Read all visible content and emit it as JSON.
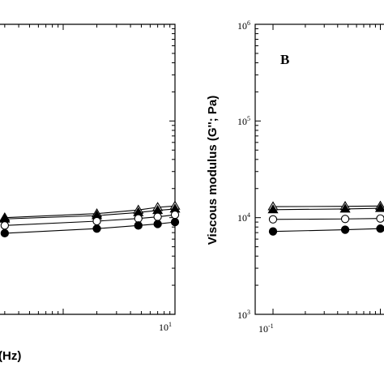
{
  "chart_data": [
    {
      "type": "line",
      "panel": "A",
      "xlabel_fragment": "(Hz)",
      "xscale": "log",
      "yscale": "log",
      "xlim": [
        0.1,
        10
      ],
      "ylim": [
        1000,
        1000000
      ],
      "x_tick_labels": [
        {
          "base": "10",
          "exp": "1",
          "value": 10
        }
      ],
      "series": [
        {
          "marker": "triangle-open",
          "x": [
            0.3,
            2.0,
            4.7,
            7.0,
            10.0
          ],
          "y": [
            10000,
            11000,
            12000,
            12800,
            13200
          ]
        },
        {
          "marker": "triangle-filled",
          "x": [
            0.3,
            2.0,
            4.7,
            7.0,
            10.0
          ],
          "y": [
            9700,
            10500,
            11300,
            11900,
            12300
          ]
        },
        {
          "marker": "circle-open",
          "x": [
            0.3,
            2.0,
            4.7,
            7.0,
            10.0
          ],
          "y": [
            8300,
            9200,
            9800,
            10200,
            10700
          ]
        },
        {
          "marker": "circle-filled",
          "x": [
            0.3,
            2.0,
            4.7,
            7.0,
            10.0
          ],
          "y": [
            6900,
            7700,
            8300,
            8600,
            9000
          ]
        }
      ]
    },
    {
      "type": "line",
      "panel": "B",
      "title": "B",
      "ylabel": "Viscous modulus (G''; Pa)",
      "xscale": "log",
      "yscale": "log",
      "xlim": [
        0.1,
        10
      ],
      "ylim": [
        1000,
        1000000
      ],
      "y_tick_labels": [
        {
          "base": "10",
          "exp": "6",
          "value": 1000000
        },
        {
          "base": "10",
          "exp": "5",
          "value": 100000
        },
        {
          "base": "10",
          "exp": "4",
          "value": 10000
        },
        {
          "base": "10",
          "exp": "3",
          "value": 1000
        }
      ],
      "x_tick_labels": [
        {
          "base": "10",
          "exp": "-1",
          "value": 0.1
        }
      ],
      "series": [
        {
          "marker": "triangle-open",
          "x": [
            0.1,
            0.47,
            1.0
          ],
          "y": [
            13000,
            13100,
            13200
          ]
        },
        {
          "marker": "triangle-filled",
          "x": [
            0.1,
            0.47,
            1.0
          ],
          "y": [
            12100,
            12300,
            12500
          ]
        },
        {
          "marker": "circle-open",
          "x": [
            0.1,
            0.47,
            1.0
          ],
          "y": [
            9600,
            9700,
            9800
          ]
        },
        {
          "marker": "circle-filled",
          "x": [
            0.1,
            0.47,
            1.0
          ],
          "y": [
            7200,
            7500,
            7700
          ]
        }
      ]
    }
  ]
}
